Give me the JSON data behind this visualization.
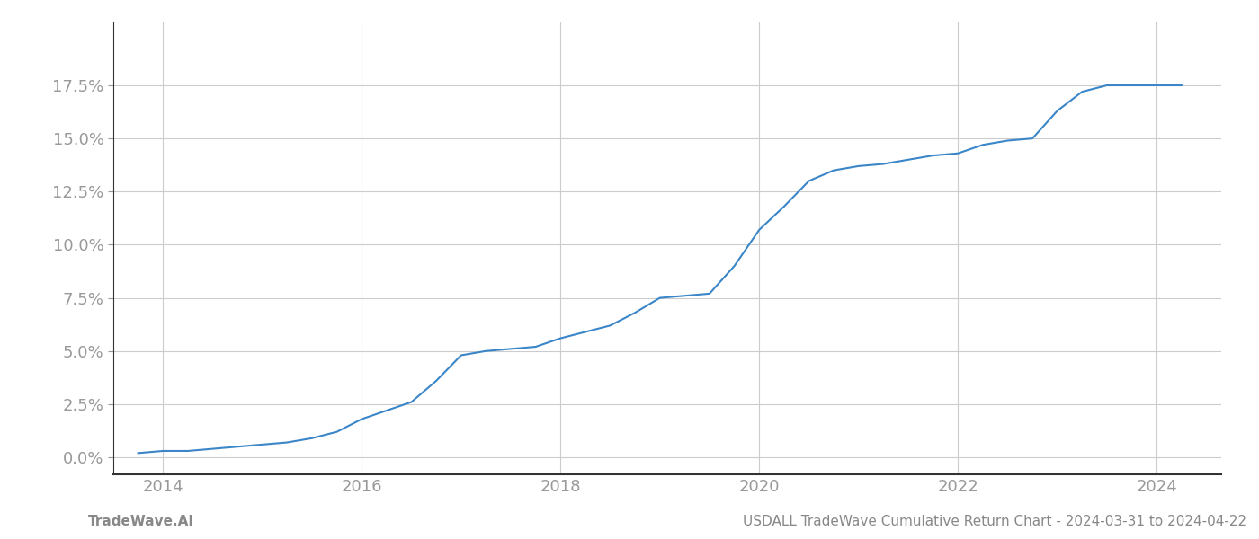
{
  "title_footer_left": "TradeWave.AI",
  "title_footer_right": "USDALL TradeWave Cumulative Return Chart - 2024-03-31 to 2024-04-22",
  "line_color": "#3a86c8",
  "line_width": 1.5,
  "background_color": "#ffffff",
  "grid_color": "#cccccc",
  "x_years": [
    2013.75,
    2014.0,
    2014.25,
    2014.5,
    2014.75,
    2015.0,
    2015.25,
    2015.5,
    2015.75,
    2016.0,
    2016.25,
    2016.5,
    2016.75,
    2017.0,
    2017.25,
    2017.5,
    2017.75,
    2018.0,
    2018.25,
    2018.5,
    2018.75,
    2019.0,
    2019.25,
    2019.5,
    2019.75,
    2020.0,
    2020.25,
    2020.5,
    2020.75,
    2021.0,
    2021.25,
    2021.5,
    2021.75,
    2022.0,
    2022.25,
    2022.5,
    2022.75,
    2023.0,
    2023.25,
    2023.5,
    2023.75,
    2024.0,
    2024.25
  ],
  "y_values": [
    0.002,
    0.003,
    0.003,
    0.004,
    0.005,
    0.006,
    0.007,
    0.009,
    0.012,
    0.018,
    0.022,
    0.026,
    0.036,
    0.048,
    0.05,
    0.051,
    0.052,
    0.056,
    0.059,
    0.062,
    0.068,
    0.075,
    0.076,
    0.077,
    0.09,
    0.107,
    0.118,
    0.13,
    0.135,
    0.137,
    0.138,
    0.14,
    0.142,
    0.143,
    0.147,
    0.149,
    0.15,
    0.163,
    0.172,
    0.175,
    0.175,
    0.175,
    0.175
  ],
  "xlim": [
    2013.5,
    2024.65
  ],
  "ylim": [
    -0.008,
    0.205
  ],
  "yticks": [
    0.0,
    0.025,
    0.05,
    0.075,
    0.1,
    0.125,
    0.15,
    0.175
  ],
  "xticks": [
    2014,
    2016,
    2018,
    2020,
    2022,
    2024
  ],
  "tick_label_color": "#999999",
  "footer_text_color": "#888888",
  "footer_fontsize": 11,
  "tick_fontsize": 13,
  "spine_bottom_color": "#333333",
  "spine_left_color": "#333333"
}
